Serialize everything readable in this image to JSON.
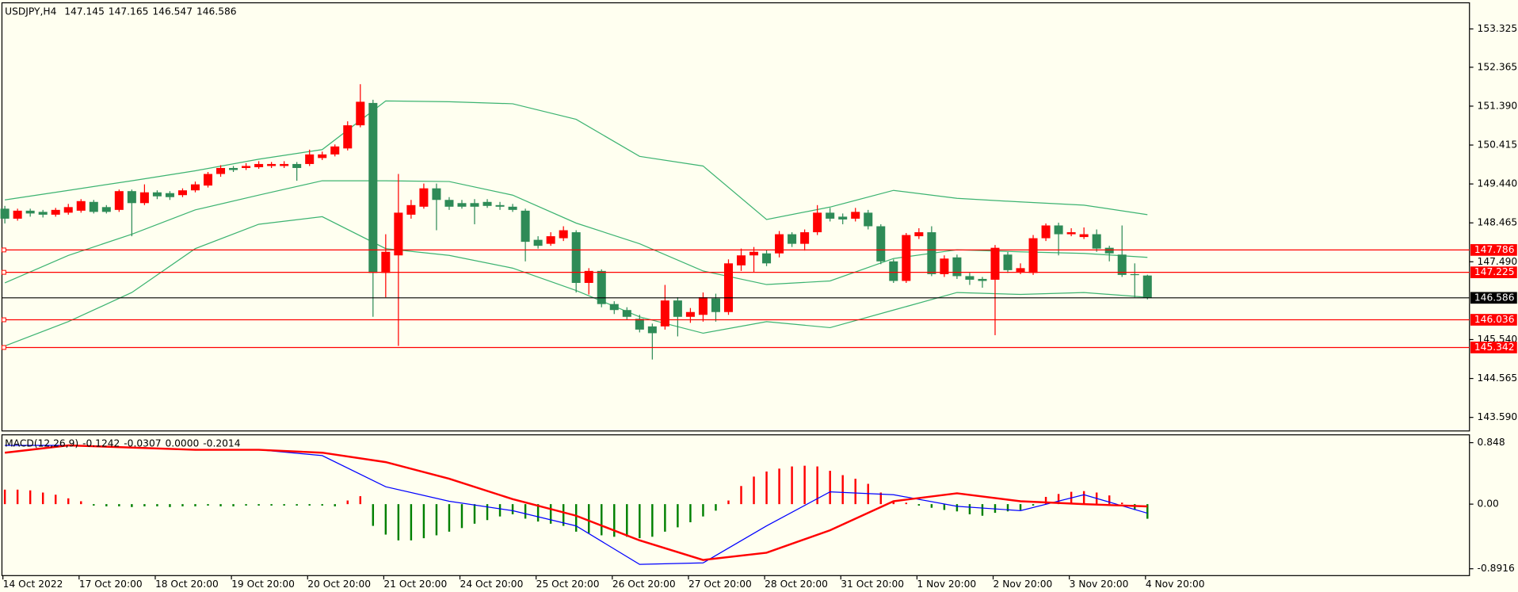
{
  "chart_data": [
    {
      "type": "candlestick",
      "title": "USDJPY,H4",
      "categories": [
        "14 Oct 2022",
        null,
        null,
        null,
        null,
        null,
        "17 Oct 20:00",
        null,
        null,
        null,
        null,
        null,
        "18 Oct 20:00",
        null,
        null,
        null,
        null,
        null,
        "19 Oct 20:00",
        null,
        null,
        null,
        null,
        null,
        "20 Oct 20:00",
        null,
        null,
        null,
        null,
        null,
        "21 Oct 20:00",
        null,
        null,
        null,
        null,
        null,
        "24 Oct 20:00",
        null,
        null,
        null,
        null,
        null,
        "25 Oct 20:00",
        null,
        null,
        null,
        null,
        null,
        "26 Oct 20:00",
        null,
        null,
        null,
        null,
        null,
        "27 Oct 20:00",
        null,
        null,
        null,
        null,
        null,
        "28 Oct 20:00",
        null,
        null,
        null,
        null,
        null,
        "31 Oct 20:00",
        null,
        null,
        null,
        null,
        null,
        "1 Nov 20:00",
        null,
        null,
        null,
        null,
        null,
        "2 Nov 20:00",
        null,
        null,
        null,
        null,
        null,
        "3 Nov 20:00",
        null,
        null,
        null,
        null,
        null,
        "4 Nov 20:00"
      ],
      "open": [
        148.82,
        148.57,
        148.77,
        148.74,
        148.67,
        148.72,
        148.77,
        148.99,
        148.86,
        148.79,
        149.26,
        148.96,
        149.23,
        149.21,
        149.16,
        149.28,
        149.4,
        149.69,
        149.84,
        149.84,
        149.86,
        149.89,
        149.89,
        149.94,
        149.94,
        150.09,
        150.18,
        150.33,
        150.91,
        151.47,
        147.21,
        147.65,
        148.67,
        148.87,
        149.33,
        149.04,
        148.96,
        148.96,
        148.99,
        148.91,
        148.87,
        148.77,
        148.04,
        147.94,
        148.08,
        148.23,
        146.96,
        147.26,
        146.43,
        146.28,
        146.06,
        145.87,
        145.87,
        146.52,
        146.11,
        146.16,
        146.57,
        146.23,
        147.4,
        147.65,
        147.7,
        147.7,
        148.18,
        147.94,
        148.23,
        148.72,
        148.62,
        148.57,
        148.72,
        148.38,
        147.5,
        147.01,
        148.13,
        148.23,
        147.18,
        147.6,
        147.13,
        147.06,
        147.04,
        147.67,
        147.23,
        147.21,
        148.08,
        148.4,
        148.18,
        148.11,
        148.18,
        147.84,
        147.67,
        147.18,
        147.145
      ],
      "high": [
        148.89,
        148.82,
        148.82,
        148.79,
        148.84,
        148.94,
        149.06,
        149.04,
        148.91,
        149.3,
        149.3,
        149.43,
        149.28,
        149.26,
        149.33,
        149.5,
        149.74,
        149.91,
        149.89,
        149.96,
        150.01,
        149.99,
        150.01,
        149.99,
        150.3,
        150.25,
        150.43,
        151.01,
        151.94,
        151.55,
        148.18,
        149.69,
        149.04,
        149.45,
        149.45,
        149.11,
        149.04,
        149.06,
        149.06,
        148.99,
        148.94,
        148.82,
        148.13,
        148.23,
        148.38,
        148.28,
        147.33,
        147.3,
        146.5,
        146.35,
        146.16,
        145.94,
        146.91,
        146.6,
        146.33,
        146.72,
        146.69,
        147.55,
        147.82,
        147.86,
        147.79,
        148.26,
        148.23,
        148.3,
        148.91,
        148.84,
        148.7,
        148.84,
        148.79,
        148.43,
        147.55,
        148.21,
        148.33,
        148.38,
        147.65,
        147.67,
        147.21,
        147.11,
        147.91,
        147.74,
        147.45,
        148.16,
        148.45,
        148.47,
        148.33,
        148.35,
        148.3,
        147.89,
        148.4,
        147.45,
        147.165
      ],
      "low": [
        148.45,
        148.52,
        148.62,
        148.6,
        148.62,
        148.67,
        148.72,
        148.7,
        148.7,
        148.74,
        148.13,
        148.91,
        149.06,
        149.04,
        149.11,
        149.23,
        149.35,
        149.62,
        149.74,
        149.79,
        149.82,
        149.84,
        149.84,
        149.52,
        149.89,
        150.04,
        150.13,
        150.28,
        150.86,
        146.11,
        146.6,
        145.38,
        148.57,
        148.82,
        148.28,
        148.79,
        148.82,
        148.43,
        148.84,
        148.79,
        148.74,
        147.5,
        147.82,
        147.89,
        148.01,
        146.72,
        146.67,
        146.35,
        146.18,
        146.04,
        145.72,
        145.04,
        145.79,
        145.62,
        145.96,
        145.99,
        145.99,
        146.16,
        147.26,
        147.23,
        147.38,
        147.6,
        147.86,
        147.77,
        148.16,
        148.5,
        148.43,
        148.5,
        148.3,
        147.43,
        146.96,
        146.96,
        148.06,
        147.13,
        147.11,
        147.06,
        146.91,
        146.84,
        145.65,
        147.21,
        147.18,
        147.16,
        148.01,
        147.65,
        148.13,
        148.06,
        147.74,
        147.5,
        147.11,
        146.6,
        146.547
      ],
      "close": [
        148.57,
        148.77,
        148.7,
        148.67,
        148.79,
        148.86,
        149.01,
        148.74,
        148.74,
        149.26,
        148.96,
        149.23,
        149.13,
        149.11,
        149.28,
        149.43,
        149.69,
        149.84,
        149.79,
        149.89,
        149.94,
        149.94,
        149.94,
        149.84,
        150.18,
        150.18,
        150.38,
        150.91,
        151.5,
        147.21,
        147.74,
        148.72,
        148.91,
        149.33,
        149.04,
        148.87,
        148.87,
        148.87,
        148.89,
        148.87,
        148.79,
        147.99,
        147.89,
        148.13,
        148.28,
        146.96,
        147.26,
        146.43,
        146.28,
        146.11,
        145.79,
        145.7,
        146.52,
        146.11,
        146.23,
        146.6,
        146.23,
        147.45,
        147.65,
        147.74,
        147.45,
        148.18,
        147.94,
        148.23,
        148.72,
        148.57,
        148.55,
        148.74,
        148.38,
        147.5,
        147.01,
        148.16,
        148.23,
        147.18,
        147.57,
        147.13,
        147.04,
        147.01,
        147.84,
        147.28,
        147.33,
        148.08,
        148.4,
        148.18,
        148.23,
        148.18,
        147.82,
        147.7,
        147.16,
        147.16,
        146.586
      ],
      "up_color": "#ff0000",
      "down_color": "#2e8b57",
      "band_x": [
        0,
        5,
        10,
        15,
        20,
        25,
        30,
        35,
        40,
        45,
        50,
        55,
        60,
        65,
        70,
        75,
        80,
        85,
        90
      ],
      "bands": [
        {
          "color": "#3cb371",
          "values": [
            149.04,
            149.28,
            149.52,
            149.77,
            150.06,
            150.3,
            151.52,
            151.5,
            151.45,
            151.06,
            150.13,
            149.89,
            148.55,
            148.86,
            149.28,
            149.08,
            148.99,
            148.91,
            148.67
          ]
        },
        {
          "color": "#3cb371",
          "values": [
            146.96,
            147.65,
            148.18,
            148.79,
            149.16,
            149.52,
            149.52,
            149.5,
            149.16,
            148.46,
            147.94,
            147.26,
            146.92,
            147.01,
            147.57,
            147.79,
            147.74,
            147.7,
            147.6
          ]
        },
        {
          "color": "#3cb371",
          "values": [
            145.38,
            145.99,
            146.72,
            147.82,
            148.43,
            148.62,
            147.82,
            147.65,
            147.33,
            146.77,
            146.11,
            145.7,
            145.99,
            145.84,
            146.28,
            146.72,
            146.67,
            146.72,
            146.6
          ]
        }
      ],
      "levels": [
        147.786,
        147.225,
        146.036,
        145.342
      ],
      "level_color": "#ff0000",
      "last_price_color": "#000000",
      "ylim": [
        143.25,
        153.98
      ],
      "yticks": [
        153.325,
        152.365,
        {
          "value": 151.39,
          "label": "151.390"
        },
        150.415,
        {
          "value": 149.44,
          "label": "149.440"
        },
        148.465,
        {
          "value": 147.49,
          "label": "147.490"
        },
        {
          "value": 145.54,
          "label": "145.540"
        },
        144.565,
        {
          "value": 143.59,
          "label": "143.590"
        }
      ],
      "grid": false
    },
    {
      "type": "macd",
      "title": "MACD(12,26,9)",
      "status_text": "0.0000",
      "histogram": [
        0.2,
        0.2,
        0.19,
        0.16,
        0.13,
        0.08,
        0.04,
        -0.02,
        -0.03,
        -0.03,
        -0.04,
        -0.03,
        -0.03,
        -0.04,
        -0.03,
        -0.03,
        -0.02,
        -0.03,
        -0.03,
        -0.02,
        -0.02,
        -0.02,
        -0.02,
        -0.02,
        -0.02,
        -0.02,
        -0.03,
        0.05,
        0.11,
        -0.3,
        -0.42,
        -0.5,
        -0.5,
        -0.47,
        -0.43,
        -0.38,
        -0.33,
        -0.27,
        -0.22,
        -0.17,
        -0.14,
        -0.2,
        -0.24,
        -0.27,
        -0.3,
        -0.38,
        -0.4,
        -0.43,
        -0.45,
        -0.45,
        -0.47,
        -0.45,
        -0.38,
        -0.32,
        -0.25,
        -0.17,
        -0.09,
        0.05,
        0.25,
        0.38,
        0.45,
        0.49,
        0.52,
        0.53,
        0.52,
        0.46,
        0.4,
        0.35,
        0.28,
        0.16,
        0.05,
        0.02,
        -0.02,
        -0.05,
        -0.08,
        -0.1,
        -0.14,
        -0.16,
        -0.12,
        -0.1,
        -0.08,
        -0.02,
        0.1,
        0.14,
        0.17,
        0.18,
        0.16,
        0.12,
        0.02,
        -0.08,
        -0.2014
      ],
      "up_color": "#ff0000",
      "down_color": "#008000",
      "x": [
        0,
        5,
        10,
        15,
        20,
        25,
        30,
        35,
        40,
        45,
        50,
        55,
        60,
        65,
        70,
        75,
        80,
        85,
        90
      ],
      "series": [
        {
          "color": "#0000ff",
          "values": [
            0.81,
            0.81,
            0.78,
            0.75,
            0.75,
            0.67,
            0.24,
            0.04,
            -0.09,
            -0.3,
            -0.83,
            -0.81,
            -0.3,
            0.17,
            0.13,
            -0.03,
            -0.09,
            0.13,
            -0.1242
          ]
        },
        {
          "color": "#ff0000",
          "values": [
            0.71,
            0.81,
            0.78,
            0.75,
            0.75,
            0.71,
            0.58,
            0.35,
            0.07,
            -0.16,
            -0.5,
            -0.77,
            -0.67,
            -0.36,
            0.04,
            0.15,
            0.04,
            0.0,
            -0.0307
          ]
        }
      ],
      "ylim": [
        -0.986,
        0.956
      ],
      "yticks": [
        0.848,
        {
          "value": 0,
          "label": "0.00"
        },
        -0.8916
      ]
    }
  ]
}
